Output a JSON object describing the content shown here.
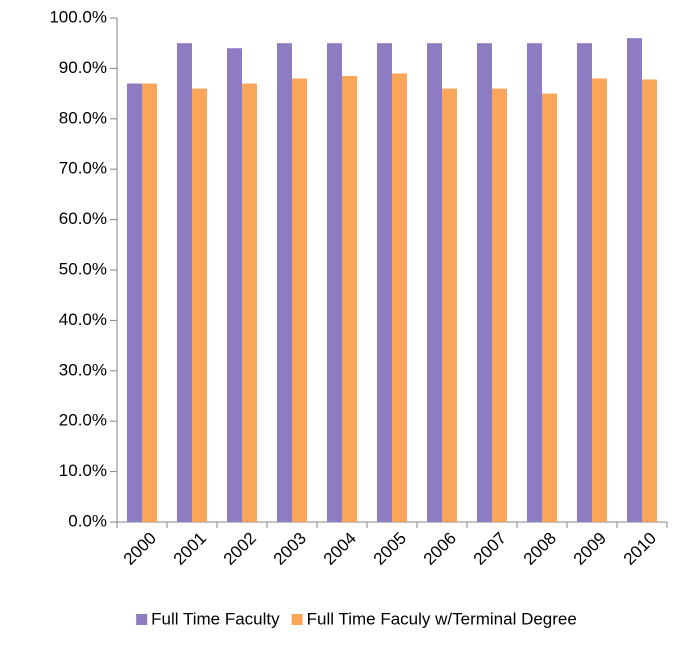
{
  "chart_data": {
    "type": "bar",
    "categories": [
      "2000",
      "2001",
      "2002",
      "2003",
      "2004",
      "2005",
      "2006",
      "2007",
      "2008",
      "2009",
      "2010"
    ],
    "series": [
      {
        "name": "Full Time Faculty",
        "color": "#8e7cc3",
        "values": [
          87,
          95,
          94,
          95,
          95,
          95,
          95,
          95,
          95,
          95,
          96
        ]
      },
      {
        "name": "Full Time Faculy w/Terminal Degree",
        "color": "#f9a65a",
        "values": [
          87,
          86,
          87,
          88,
          88.5,
          89,
          86,
          86,
          85,
          88,
          87.8
        ]
      }
    ],
    "ylim": [
      0,
      100
    ],
    "yticks": [
      {
        "value": 0,
        "label": "0.0%"
      },
      {
        "value": 10,
        "label": "10.0%"
      },
      {
        "value": 20,
        "label": "20.0%"
      },
      {
        "value": 30,
        "label": "30.0%"
      },
      {
        "value": 40,
        "label": "40.0%"
      },
      {
        "value": 50,
        "label": "50.0%"
      },
      {
        "value": 60,
        "label": "60.0%"
      },
      {
        "value": 70,
        "label": "70.0%"
      },
      {
        "value": 80,
        "label": "80.0%"
      },
      {
        "value": 90,
        "label": "90.0%"
      },
      {
        "value": 100,
        "label": "100.0%"
      }
    ],
    "grid": false,
    "legend": "bottom"
  }
}
